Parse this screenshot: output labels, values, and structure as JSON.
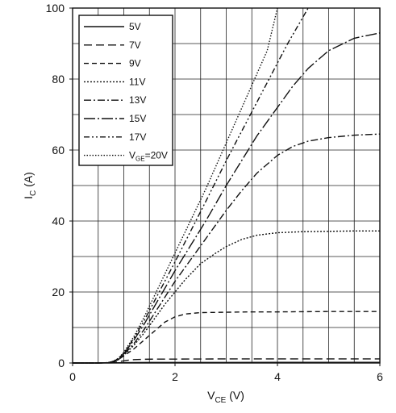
{
  "chart_data": {
    "type": "line",
    "title": "",
    "xlabel": {
      "main": "V",
      "sub": "CE",
      "unit": " (V)"
    },
    "ylabel": {
      "main": "I",
      "sub": "C",
      "unit": " (A)"
    },
    "xlim": [
      0,
      6
    ],
    "ylim": [
      0,
      100
    ],
    "xticks": [
      0,
      2,
      4,
      6
    ],
    "yticks": [
      0,
      20,
      40,
      60,
      80,
      100
    ],
    "grid": true,
    "legend": "top-left",
    "series": [
      {
        "name": "5V",
        "dash": "solid",
        "x": [
          0,
          0.5,
          0.7,
          0.8,
          0.9,
          1.0,
          1.2,
          1.5,
          2.0,
          3.0,
          4.0,
          5.0,
          6.0
        ],
        "y": [
          0,
          0,
          0.02,
          0.05,
          0.08,
          0.1,
          0.12,
          0.14,
          0.15,
          0.16,
          0.17,
          0.18,
          0.18
        ]
      },
      {
        "name": "7V",
        "dash": "long-dash",
        "x": [
          0,
          0.5,
          0.7,
          0.8,
          0.9,
          1.0,
          1.1,
          1.2,
          1.4,
          1.7,
          2.0,
          3.0,
          4.0,
          5.0,
          6.0
        ],
        "y": [
          0,
          0,
          0.05,
          0.15,
          0.35,
          0.6,
          0.8,
          0.95,
          1.05,
          1.1,
          1.1,
          1.15,
          1.15,
          1.15,
          1.15
        ]
      },
      {
        "name": "9V",
        "dash": "dash",
        "x": [
          0,
          0.5,
          0.7,
          0.8,
          0.9,
          1.0,
          1.2,
          1.4,
          1.6,
          1.8,
          2.0,
          2.2,
          2.5,
          3.0,
          3.5,
          4.0,
          5.0,
          6.0
        ],
        "y": [
          0,
          0,
          0.1,
          0.4,
          1.0,
          2.0,
          4.0,
          6.5,
          9.0,
          11.5,
          13.0,
          13.8,
          14.2,
          14.3,
          14.4,
          14.4,
          14.5,
          14.5
        ]
      },
      {
        "name": "11V",
        "dash": "dot",
        "x": [
          0,
          0.5,
          0.7,
          0.8,
          0.9,
          1.0,
          1.2,
          1.4,
          1.6,
          1.8,
          2.0,
          2.2,
          2.5,
          2.8,
          3.0,
          3.3,
          3.6,
          4.0,
          4.5,
          5.0,
          5.5,
          6.0
        ],
        "y": [
          0,
          0,
          0.1,
          0.4,
          1.0,
          2.2,
          5.0,
          8.5,
          12.5,
          16.5,
          20.0,
          23.5,
          28.0,
          31.0,
          32.8,
          34.8,
          36.0,
          36.7,
          37.0,
          37.1,
          37.2,
          37.2
        ]
      },
      {
        "name": "13V",
        "dash": "dash-dot",
        "x": [
          0,
          0.5,
          0.7,
          0.8,
          0.9,
          1.0,
          1.2,
          1.4,
          1.6,
          1.8,
          2.0,
          2.3,
          2.6,
          3.0,
          3.3,
          3.6,
          4.0,
          4.3,
          4.6,
          5.0,
          5.5,
          6.0
        ],
        "y": [
          0,
          0,
          0.1,
          0.4,
          1.0,
          2.4,
          5.5,
          9.5,
          14.0,
          18.5,
          23.0,
          29.0,
          35.0,
          43.0,
          48.5,
          53.5,
          58.5,
          61.0,
          62.5,
          63.5,
          64.2,
          64.5
        ]
      },
      {
        "name": "15V",
        "dash": "long-dash-dot",
        "x": [
          0,
          0.5,
          0.7,
          0.8,
          0.9,
          1.0,
          1.2,
          1.4,
          1.6,
          1.8,
          2.0,
          2.3,
          2.6,
          3.0,
          3.3,
          3.6,
          4.0,
          4.3,
          4.6,
          5.0,
          5.5,
          6.0
        ],
        "y": [
          0,
          0,
          0.1,
          0.5,
          1.2,
          2.6,
          6.5,
          11.0,
          16.0,
          21.0,
          26.0,
          33.0,
          40.0,
          50.0,
          57.0,
          64.0,
          72.0,
          78.0,
          83.0,
          88.0,
          91.5,
          93.0
        ]
      },
      {
        "name": "17V",
        "dash": "dash-dot-2",
        "x": [
          0,
          0.5,
          0.7,
          0.8,
          0.9,
          1.0,
          1.2,
          1.4,
          1.6,
          1.8,
          2.0,
          2.3,
          2.6,
          3.0,
          3.4,
          3.8,
          4.2,
          4.6
        ],
        "y": [
          0,
          0,
          0.1,
          0.5,
          1.3,
          2.8,
          7.0,
          12.0,
          17.5,
          23.0,
          28.5,
          37.0,
          45.5,
          57.0,
          68.0,
          79.0,
          90.0,
          100.0
        ]
      },
      {
        "name": "V_GE=20V",
        "dash": "fine-dot",
        "x": [
          0,
          0.5,
          0.7,
          0.8,
          0.9,
          1.0,
          1.2,
          1.4,
          1.6,
          1.8,
          2.0,
          2.3,
          2.6,
          3.0,
          3.4,
          3.8,
          4.0
        ],
        "y": [
          0,
          0,
          0.1,
          0.5,
          1.4,
          3.0,
          7.5,
          13.0,
          19.0,
          25.0,
          31.0,
          40.0,
          49.0,
          62.0,
          75.0,
          88.0,
          100.0
        ]
      }
    ],
    "legend_entries": [
      {
        "text": "5V"
      },
      {
        "text": "7V"
      },
      {
        "text": "9V"
      },
      {
        "text": "11V"
      },
      {
        "text": "13V"
      },
      {
        "text": "15V"
      },
      {
        "text": "17V"
      },
      {
        "text": "=20V",
        "prefix": "V",
        "prefix_sub": "GE"
      }
    ]
  }
}
